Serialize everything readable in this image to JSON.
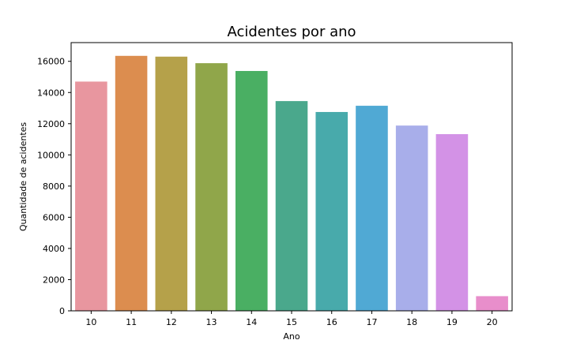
{
  "chart_data": {
    "type": "bar",
    "title": "Acidentes por ano",
    "xlabel": "Ano",
    "ylabel": "Quantidade de acidentes",
    "categories": [
      "10",
      "11",
      "12",
      "13",
      "14",
      "15",
      "16",
      "17",
      "18",
      "19",
      "20"
    ],
    "values": [
      14700,
      16350,
      16300,
      15880,
      15380,
      13450,
      12750,
      13150,
      11880,
      11330,
      940
    ],
    "ylim": [
      0,
      17200
    ],
    "yticks": [
      0,
      2000,
      4000,
      6000,
      8000,
      10000,
      12000,
      14000,
      16000
    ],
    "colors": [
      "#e8969f",
      "#dc8d4f",
      "#b5a14a",
      "#90a64a",
      "#4aaf63",
      "#4aa88c",
      "#48aaab",
      "#50a9d4",
      "#a8aeea",
      "#d392e6",
      "#e88ecb"
    ],
    "grid": false,
    "legend": "none"
  }
}
